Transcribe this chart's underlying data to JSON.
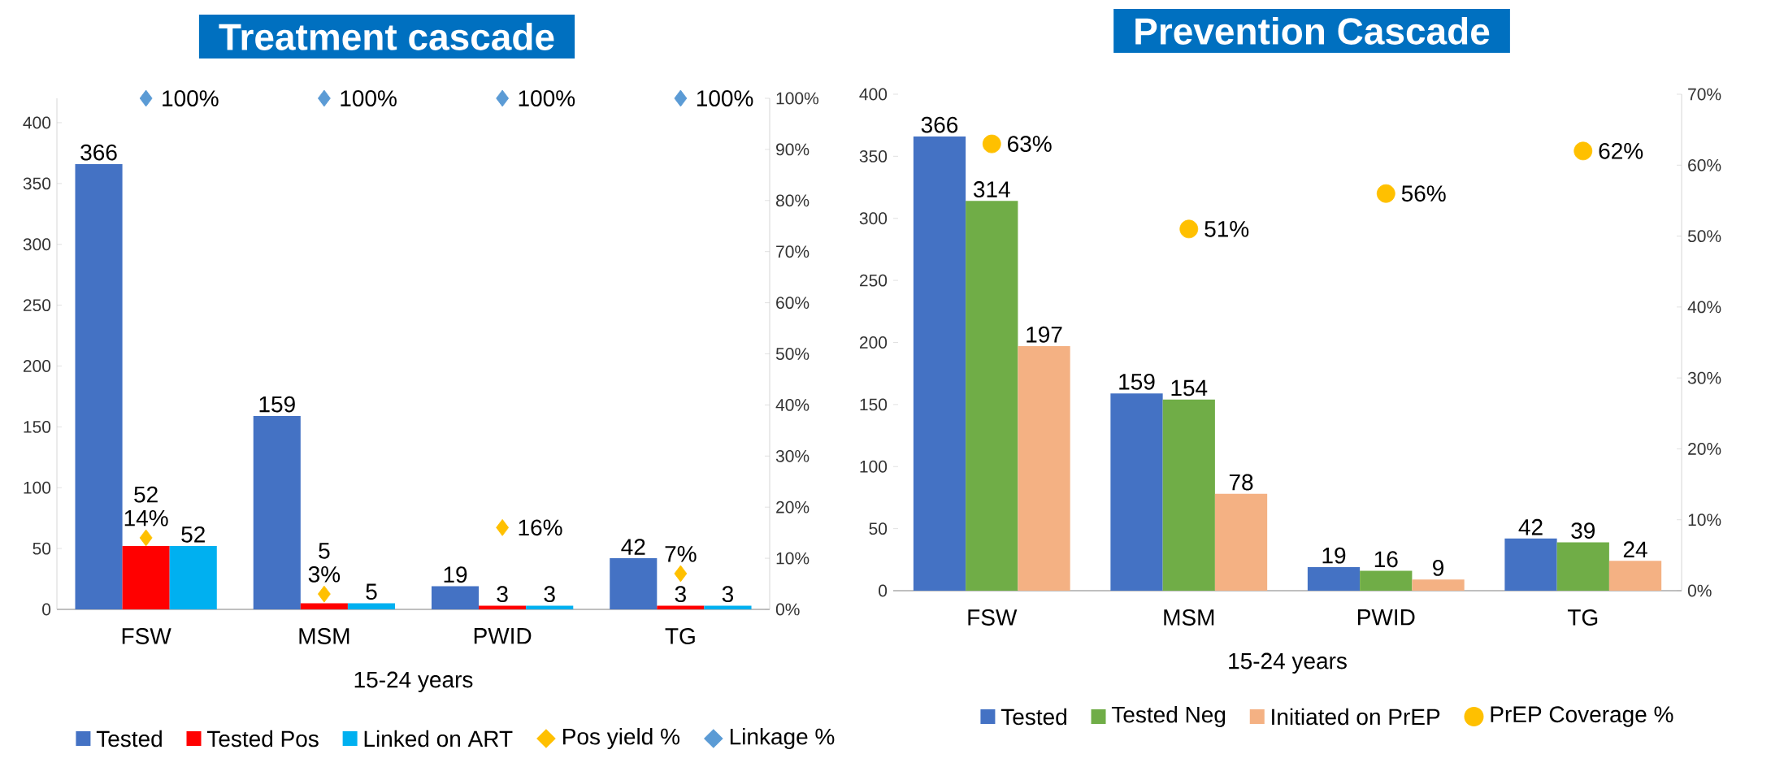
{
  "chart_data": [
    {
      "type": "bar",
      "title": "Treatment cascade",
      "xlabel": "15-24 years",
      "categories": [
        "FSW",
        "MSM",
        "PWID",
        "TG"
      ],
      "series": [
        {
          "name": "Tested",
          "color": "#4472c4",
          "values": [
            366,
            159,
            19,
            42
          ]
        },
        {
          "name": "Tested Pos",
          "color": "#ff0000",
          "values": [
            52,
            5,
            3,
            3
          ]
        },
        {
          "name": "Linked on ART",
          "color": "#00b0f0",
          "values": [
            52,
            5,
            3,
            3
          ]
        },
        {
          "name": "Pos yield %",
          "type": "scatter",
          "axis": "y2",
          "marker": "diamond",
          "color": "#ffc000",
          "values": [
            14,
            3,
            16,
            7
          ],
          "value_labels": [
            "14%",
            "3%",
            "16%",
            "7%"
          ]
        },
        {
          "name": "Linkage %",
          "type": "scatter",
          "axis": "y2",
          "marker": "diamond",
          "color": "#5b9bd5",
          "values": [
            100,
            100,
            100,
            100
          ],
          "value_labels": [
            "100%",
            "100%",
            "100%",
            "100%"
          ]
        }
      ],
      "ylim": [
        0,
        420
      ],
      "yticks": [
        0,
        50,
        100,
        150,
        200,
        250,
        300,
        350,
        400
      ],
      "y2lim": [
        0,
        100
      ],
      "y2ticks": [
        {
          "value": 0,
          "label": "0%"
        },
        {
          "value": 10,
          "label": "10%"
        },
        {
          "value": 20,
          "label": "20%"
        },
        {
          "value": 30,
          "label": "30%"
        },
        {
          "value": 40,
          "label": "40%"
        },
        {
          "value": 50,
          "label": "50%"
        },
        {
          "value": 60,
          "label": "60%"
        },
        {
          "value": 70,
          "label": "70%"
        },
        {
          "value": 80,
          "label": "80%"
        },
        {
          "value": 90,
          "label": "90%"
        },
        {
          "value": 100,
          "label": "100%"
        }
      ],
      "data_labels": true,
      "legend": "bottom"
    },
    {
      "type": "bar",
      "title": "Prevention Cascade",
      "xlabel": "15-24 years",
      "categories": [
        "FSW",
        "MSM",
        "PWID",
        "TG"
      ],
      "series": [
        {
          "name": "Tested",
          "color": "#4472c4",
          "values": [
            366,
            159,
            19,
            42
          ]
        },
        {
          "name": "Tested Neg",
          "color": "#70ad47",
          "values": [
            314,
            154,
            16,
            39
          ]
        },
        {
          "name": "Initiated on PrEP",
          "color": "#f4b183",
          "values": [
            197,
            78,
            9,
            24
          ]
        },
        {
          "name": "PrEP Coverage %",
          "type": "scatter",
          "axis": "y2",
          "marker": "circle",
          "color": "#ffc000",
          "values": [
            63,
            51,
            56,
            62
          ],
          "value_labels": [
            "63%",
            "51%",
            "56%",
            "62%"
          ]
        }
      ],
      "ylim": [
        0,
        400
      ],
      "yticks": [
        0,
        50,
        100,
        150,
        200,
        250,
        300,
        350,
        400
      ],
      "y2lim": [
        0,
        70
      ],
      "y2ticks": [
        {
          "value": 0,
          "label": "0%"
        },
        {
          "value": 10,
          "label": "10%"
        },
        {
          "value": 20,
          "label": "20%"
        },
        {
          "value": 30,
          "label": "30%"
        },
        {
          "value": 40,
          "label": "40%"
        },
        {
          "value": 50,
          "label": "50%"
        },
        {
          "value": 60,
          "label": "60%"
        },
        {
          "value": 70,
          "label": "70%"
        }
      ],
      "data_labels": true,
      "legend": "bottom"
    }
  ]
}
